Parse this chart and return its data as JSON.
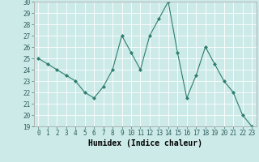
{
  "x": [
    0,
    1,
    2,
    3,
    4,
    5,
    6,
    7,
    8,
    9,
    10,
    11,
    12,
    13,
    14,
    15,
    16,
    17,
    18,
    19,
    20,
    21,
    22,
    23
  ],
  "y": [
    25,
    24.5,
    24,
    23.5,
    23,
    22,
    21.5,
    22.5,
    24,
    27,
    25.5,
    24,
    27,
    28.5,
    30,
    25.5,
    21.5,
    23.5,
    26,
    24.5,
    23,
    22,
    20,
    19
  ],
  "xlabel": "Humidex (Indice chaleur)",
  "xlim": [
    -0.5,
    23.5
  ],
  "ylim": [
    19,
    30
  ],
  "yticks": [
    19,
    20,
    21,
    22,
    23,
    24,
    25,
    26,
    27,
    28,
    29,
    30
  ],
  "xticks": [
    0,
    1,
    2,
    3,
    4,
    5,
    6,
    7,
    8,
    9,
    10,
    11,
    12,
    13,
    14,
    15,
    16,
    17,
    18,
    19,
    20,
    21,
    22,
    23
  ],
  "line_color": "#2e7d6e",
  "marker": "D",
  "marker_size": 2.0,
  "bg_color": "#cceae8",
  "grid_color": "#ffffff",
  "spine_color": "#aaaaaa",
  "label_fontsize": 7.0,
  "tick_fontsize": 5.5
}
